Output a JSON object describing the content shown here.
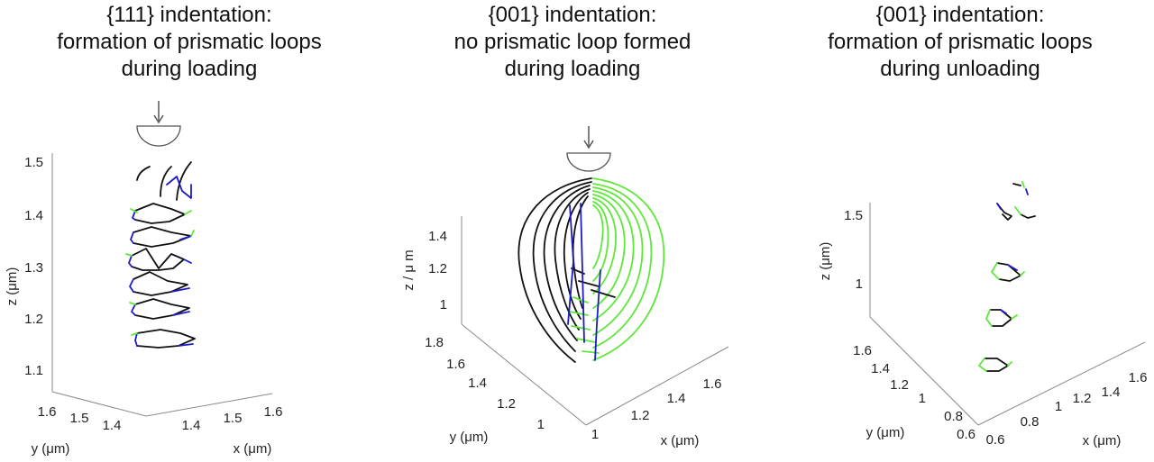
{
  "colors": {
    "black": "#111111",
    "blue": "#1c1cc8",
    "green": "#5ee83a",
    "axis": "#8a8a8a",
    "indenter": "#555555"
  },
  "panels": [
    {
      "title": [
        "{111} indentation:",
        "formation of prismatic loops",
        "during loading"
      ],
      "z_label": "z (μm)",
      "x_label": "x (μm)",
      "y_label": "y (μm)",
      "z_ticks": [
        "1.5",
        "1.4",
        "1.3",
        "1.2",
        "1.1"
      ],
      "x_ticks": [
        "1.4",
        "1.5",
        "1.6"
      ],
      "y_ticks": [
        "1.6",
        "1.5",
        "1.4"
      ]
    },
    {
      "title": [
        "{001} indentation:",
        "no prismatic loop formed",
        "during loading"
      ],
      "z_label": "z / μ m",
      "x_label": "x (μm)",
      "y_label": "y (μm)",
      "z_ticks": [
        "1.4",
        "1.2",
        "1"
      ],
      "x_ticks": [
        "1",
        "1.2",
        "1.4",
        "1.6"
      ],
      "y_ticks": [
        "1.8",
        "1.6",
        "1.4",
        "1.2",
        "1"
      ]
    },
    {
      "title": [
        "{001} indentation:",
        "formation of prismatic loops",
        "during unloading"
      ],
      "z_label": "z (μm)",
      "x_label": "x (μm)",
      "y_label": "y (μm)",
      "z_ticks": [
        "1.5",
        "1"
      ],
      "x_ticks": [
        "0.6",
        "0.8",
        "1",
        "1.2",
        "1.4",
        "1.6"
      ],
      "y_ticks": [
        "1.6",
        "1.4",
        "1.2",
        "1",
        "0.8",
        "0.6"
      ]
    }
  ]
}
